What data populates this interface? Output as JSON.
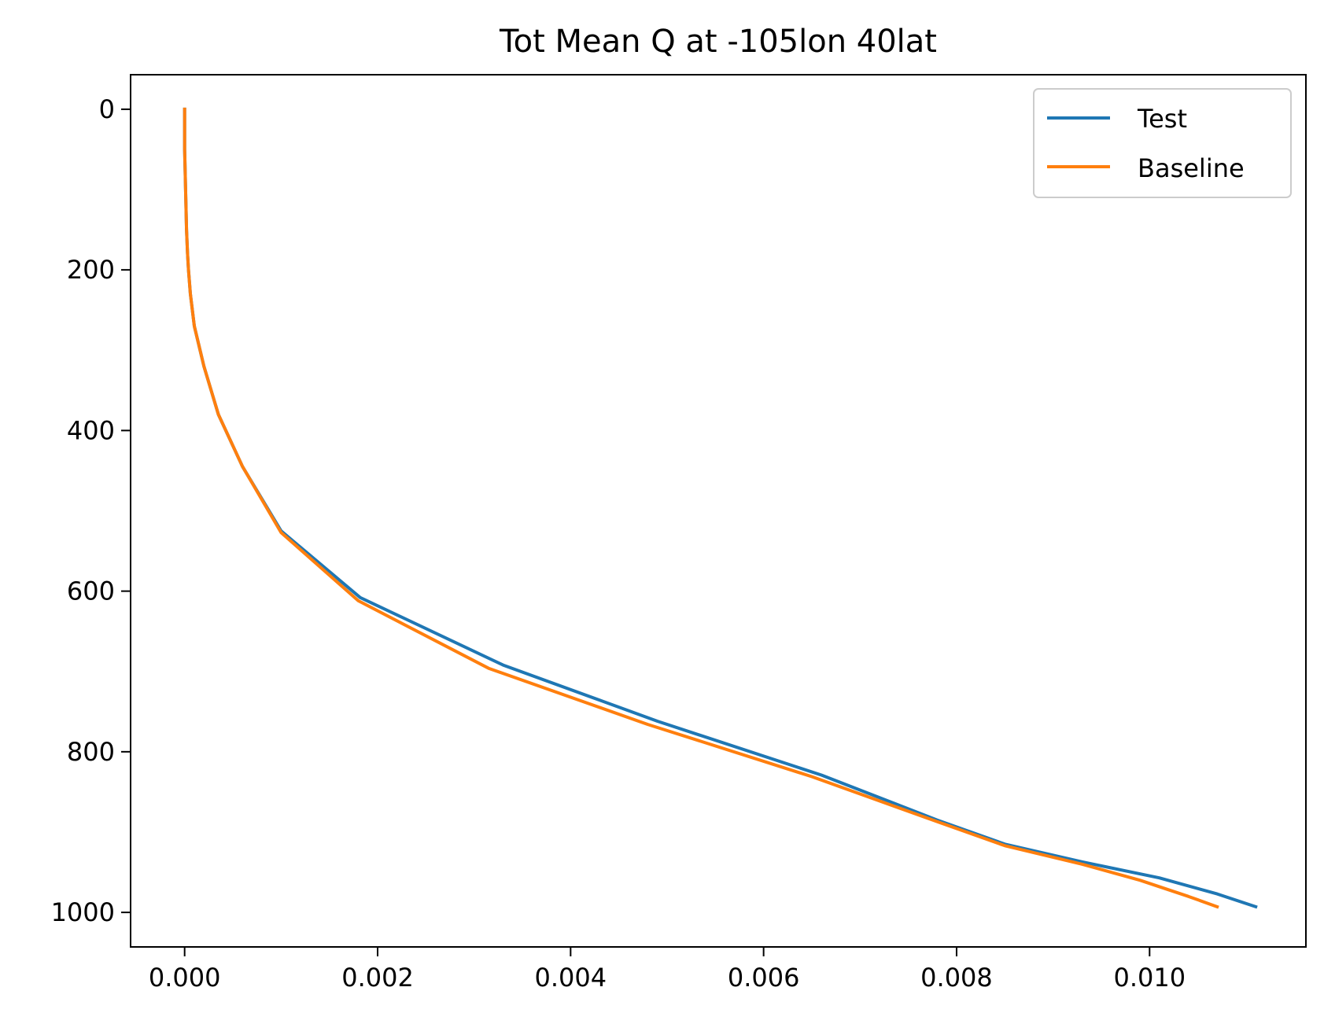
{
  "chart_data": {
    "type": "line",
    "title": "Tot Mean Q at -105lon 40lat",
    "xlabel": "",
    "ylabel": "",
    "xlim": [
      -0.00056,
      0.01162
    ],
    "ylim": [
      1043,
      -43
    ],
    "y_inverted": true,
    "grid": false,
    "legend_position": "top-right",
    "x_ticks": [
      0.0,
      0.002,
      0.004,
      0.006,
      0.008,
      0.01
    ],
    "x_tick_labels": [
      "0.000",
      "0.002",
      "0.004",
      "0.006",
      "0.008",
      "0.010"
    ],
    "y_ticks": [
      0,
      200,
      400,
      600,
      800,
      1000
    ],
    "y_tick_labels": [
      "0",
      "200",
      "400",
      "600",
      "800",
      "1000"
    ],
    "series": [
      {
        "name": "Test",
        "color": "#1f77b4",
        "x": [
          0.0,
          0.0,
          1e-05,
          2e-05,
          3e-05,
          4e-05,
          6e-05,
          0.0001,
          0.0002,
          0.00035,
          0.0006,
          0.001,
          0.00182,
          0.0033,
          0.0049,
          0.0066,
          0.0078,
          0.0085,
          0.0093,
          0.0101,
          0.0107,
          0.0111
        ],
        "y": [
          0,
          50,
          100,
          150,
          180,
          200,
          230,
          270,
          320,
          380,
          445,
          525,
          608,
          692,
          762,
          829,
          885,
          915,
          937,
          957,
          977,
          993
        ]
      },
      {
        "name": "Baseline",
        "color": "#ff7f0e",
        "x": [
          0.0,
          0.0,
          1e-05,
          2e-05,
          3e-05,
          4e-05,
          6e-05,
          0.0001,
          0.0002,
          0.00035,
          0.0006,
          0.001,
          0.0018,
          0.00315,
          0.0048,
          0.0065,
          0.0078,
          0.0085,
          0.0093,
          0.0099,
          0.0104,
          0.0107
        ],
        "y": [
          0,
          50,
          100,
          150,
          180,
          200,
          230,
          270,
          320,
          380,
          445,
          527,
          612,
          696,
          766,
          831,
          887,
          917,
          940,
          960,
          980,
          993
        ]
      }
    ]
  }
}
